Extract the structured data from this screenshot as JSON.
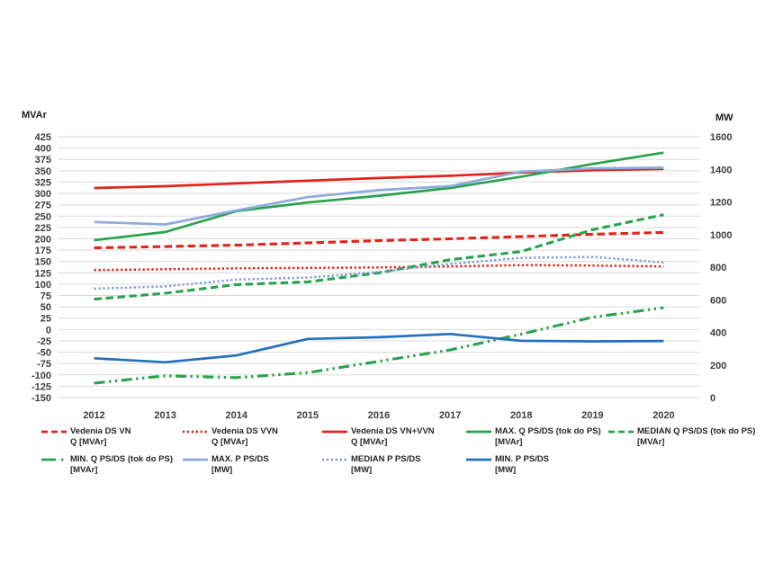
{
  "chart": {
    "left_axis_unit": "MVAr",
    "right_axis_unit": "MW"
  },
  "chart_data": {
    "type": "line",
    "title": "",
    "x": [
      2012,
      2013,
      2014,
      2015,
      2016,
      2017,
      2018,
      2019,
      2020
    ],
    "left_axis": {
      "unit": "MVAr",
      "min": -150,
      "max": 425,
      "step": 25
    },
    "right_axis": {
      "unit": "MW",
      "min": 0,
      "max": 1600,
      "step": 200
    },
    "grid": true,
    "legend_position": "bottom",
    "colors": {
      "red": "#e2231a",
      "green": "#29a24d",
      "light_blue": "#8faadc",
      "medium_blue": "#7e9cd3",
      "dark_blue": "#2271bf",
      "gridline": "#d9d9d9",
      "tick_text": "#3d3d3d"
    },
    "series": [
      {
        "id": "vedenia-ds-vn",
        "name": "Vedenia DS VN",
        "name2": "Q [MVAr]",
        "axis": "left",
        "color": "#e2231a",
        "style": "dashed",
        "values": [
          180,
          183,
          186,
          191,
          196,
          200,
          205,
          210,
          214
        ]
      },
      {
        "id": "vedenia-ds-vvn",
        "name": "Vedenia DS VVN",
        "name2": "Q [MVAr]",
        "axis": "left",
        "color": "#e2231a",
        "style": "dotted",
        "values": [
          131,
          133,
          135,
          136,
          137,
          139,
          142,
          141,
          139
        ]
      },
      {
        "id": "vedenia-ds-vn-vvn",
        "name": "Vedenia DS VN+VVN",
        "name2": "Q [MVAr]",
        "axis": "left",
        "color": "#e2231a",
        "style": "solid",
        "values": [
          312,
          316,
          322,
          328,
          334,
          339,
          346,
          351,
          354
        ]
      },
      {
        "id": "max-q-ps-ds",
        "name": "MAX. Q PS/DS (tok do PS)",
        "name2": "[MVAr]",
        "axis": "left",
        "color": "#29a24d",
        "style": "solid",
        "values": [
          197,
          215,
          261,
          280,
          295,
          312,
          337,
          365,
          390
        ]
      },
      {
        "id": "median-q-ps-ds",
        "name": "MEDIAN Q PS/DS  (tok do PS)",
        "name2": "[MVAr]",
        "axis": "left",
        "color": "#29a24d",
        "style": "dashed",
        "values": [
          67,
          80,
          99,
          105,
          125,
          154,
          172,
          220,
          253
        ]
      },
      {
        "id": "min-q-ps-ds",
        "name": "MIN. Q PS/DS (tok do PS)",
        "name2": "[MVAr]",
        "axis": "left",
        "color": "#29a24d",
        "style": "dashdotdot",
        "values": [
          -118,
          -102,
          -106,
          -95,
          -70,
          -45,
          -10,
          27,
          48
        ]
      },
      {
        "id": "max-p-ps-ds",
        "name": "MAX. P PS/DS",
        "name2": "[MW]",
        "axis": "right",
        "color": "#8faadc",
        "style": "solid",
        "values": [
          1077,
          1062,
          1148,
          1230,
          1272,
          1297,
          1386,
          1406,
          1410
        ]
      },
      {
        "id": "median-p-ps-ds",
        "name": "MEDIAN P PS/DS",
        "name2": "[MW]",
        "axis": "right",
        "color": "#7e9cd3",
        "style": "dotted",
        "values": [
          668,
          682,
          724,
          736,
          771,
          820,
          857,
          863,
          829
        ]
      },
      {
        "id": "min-p-ps-ds",
        "name": "MIN. P PS/DS",
        "name2": "[MW]",
        "axis": "right",
        "color": "#2271bf",
        "style": "solid",
        "values": [
          241,
          217,
          259,
          360,
          370,
          390,
          348,
          345,
          347
        ]
      }
    ]
  }
}
